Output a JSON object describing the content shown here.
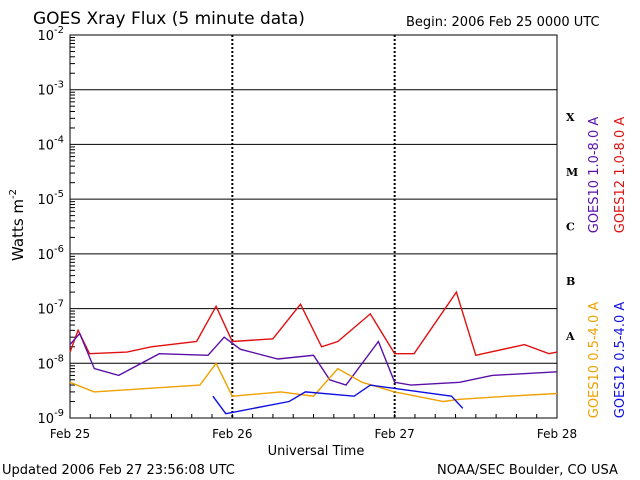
{
  "header": {
    "title": "GOES Xray Flux (5 minute data)",
    "begin": "Begin:  2006 Feb 25 0000 UTC"
  },
  "footer": {
    "updated": "Updated 2006 Feb 27 23:56:08 UTC",
    "credit": "NOAA/SEC Boulder, CO USA"
  },
  "chart_data": {
    "type": "line",
    "title": "GOES Xray Flux (5 minute data)",
    "xlabel": "Universal Time",
    "ylabel": "Watts m",
    "ylabel_exponent": "-2",
    "y_scale": "log",
    "ylim": [
      1e-09,
      0.01
    ],
    "x_range": [
      "Feb 25",
      "Feb 28"
    ],
    "x_ticks": [
      "Feb 25",
      "Feb 26",
      "Feb 27",
      "Feb 28"
    ],
    "y_ticks": [
      {
        "base": "10",
        "exp": "-2"
      },
      {
        "base": "10",
        "exp": "-3"
      },
      {
        "base": "10",
        "exp": "-4"
      },
      {
        "base": "10",
        "exp": "-5"
      },
      {
        "base": "10",
        "exp": "-6"
      },
      {
        "base": "10",
        "exp": "-7"
      },
      {
        "base": "10",
        "exp": "-8"
      },
      {
        "base": "10",
        "exp": "-9"
      }
    ],
    "flare_classes": [
      "X",
      "M",
      "C",
      "B",
      "A"
    ],
    "grid": true,
    "legend_placement": "right, vertical",
    "series": [
      {
        "name": "GOES12 1.0-8.0 A",
        "color": "#e01010",
        "points": [
          [
            0.0,
            1.6e-08
          ],
          [
            0.05,
            4e-08
          ],
          [
            0.12,
            1.5e-08
          ],
          [
            0.35,
            1.6e-08
          ],
          [
            0.5,
            2e-08
          ],
          [
            0.78,
            2.5e-08
          ],
          [
            0.9,
            1.1e-07
          ],
          [
            1.0,
            2.5e-08
          ],
          [
            1.25,
            2.8e-08
          ],
          [
            1.42,
            1.2e-07
          ],
          [
            1.55,
            2e-08
          ],
          [
            1.65,
            2.5e-08
          ],
          [
            1.85,
            8e-08
          ],
          [
            2.0,
            1.5e-08
          ],
          [
            2.12,
            1.5e-08
          ],
          [
            2.38,
            2e-07
          ],
          [
            2.5,
            1.4e-08
          ],
          [
            2.8,
            2.2e-08
          ],
          [
            2.95,
            1.5e-08
          ],
          [
            3.0,
            1.6e-08
          ]
        ]
      },
      {
        "name": "GOES10 1.0-8.0 A",
        "color": "#5a10a8",
        "points": [
          [
            0.0,
            2.2e-08
          ],
          [
            0.06,
            3.5e-08
          ],
          [
            0.15,
            8e-09
          ],
          [
            0.3,
            6e-09
          ],
          [
            0.55,
            1.5e-08
          ],
          [
            0.85,
            1.4e-08
          ],
          [
            0.95,
            3e-08
          ],
          [
            1.05,
            1.8e-08
          ],
          [
            1.28,
            1.2e-08
          ],
          [
            1.5,
            1.4e-08
          ],
          [
            1.6,
            5e-09
          ],
          [
            1.7,
            4e-09
          ],
          [
            1.9,
            2.5e-08
          ],
          [
            2.0,
            4.5e-09
          ],
          [
            2.1,
            4e-09
          ],
          [
            2.4,
            4.5e-09
          ],
          [
            2.6,
            6e-09
          ],
          [
            3.0,
            7e-09
          ]
        ]
      },
      {
        "name": "GOES10 0.5-4.0 A",
        "color": "#f0a000",
        "points": [
          [
            0.0,
            4.5e-09
          ],
          [
            0.15,
            3e-09
          ],
          [
            0.5,
            3.5e-09
          ],
          [
            0.8,
            4e-09
          ],
          [
            0.9,
            1e-08
          ],
          [
            1.0,
            2.5e-09
          ],
          [
            1.3,
            3e-09
          ],
          [
            1.5,
            2.5e-09
          ],
          [
            1.65,
            8e-09
          ],
          [
            1.8,
            4.5e-09
          ],
          [
            2.0,
            3e-09
          ],
          [
            2.3,
            2e-09
          ],
          [
            2.4,
            2.2e-09
          ],
          [
            2.7,
            2.5e-09
          ],
          [
            3.0,
            2.8e-09
          ]
        ]
      },
      {
        "name": "GOES12 0.5-4.0 A",
        "color": "#1010e0",
        "points": [
          [
            0.88,
            2.5e-09
          ],
          [
            0.96,
            1.2e-09
          ],
          [
            1.35,
            2e-09
          ],
          [
            1.45,
            3e-09
          ],
          [
            1.75,
            2.5e-09
          ],
          [
            1.85,
            4e-09
          ],
          [
            2.35,
            2.5e-09
          ],
          [
            2.42,
            1.5e-09
          ]
        ]
      }
    ]
  }
}
